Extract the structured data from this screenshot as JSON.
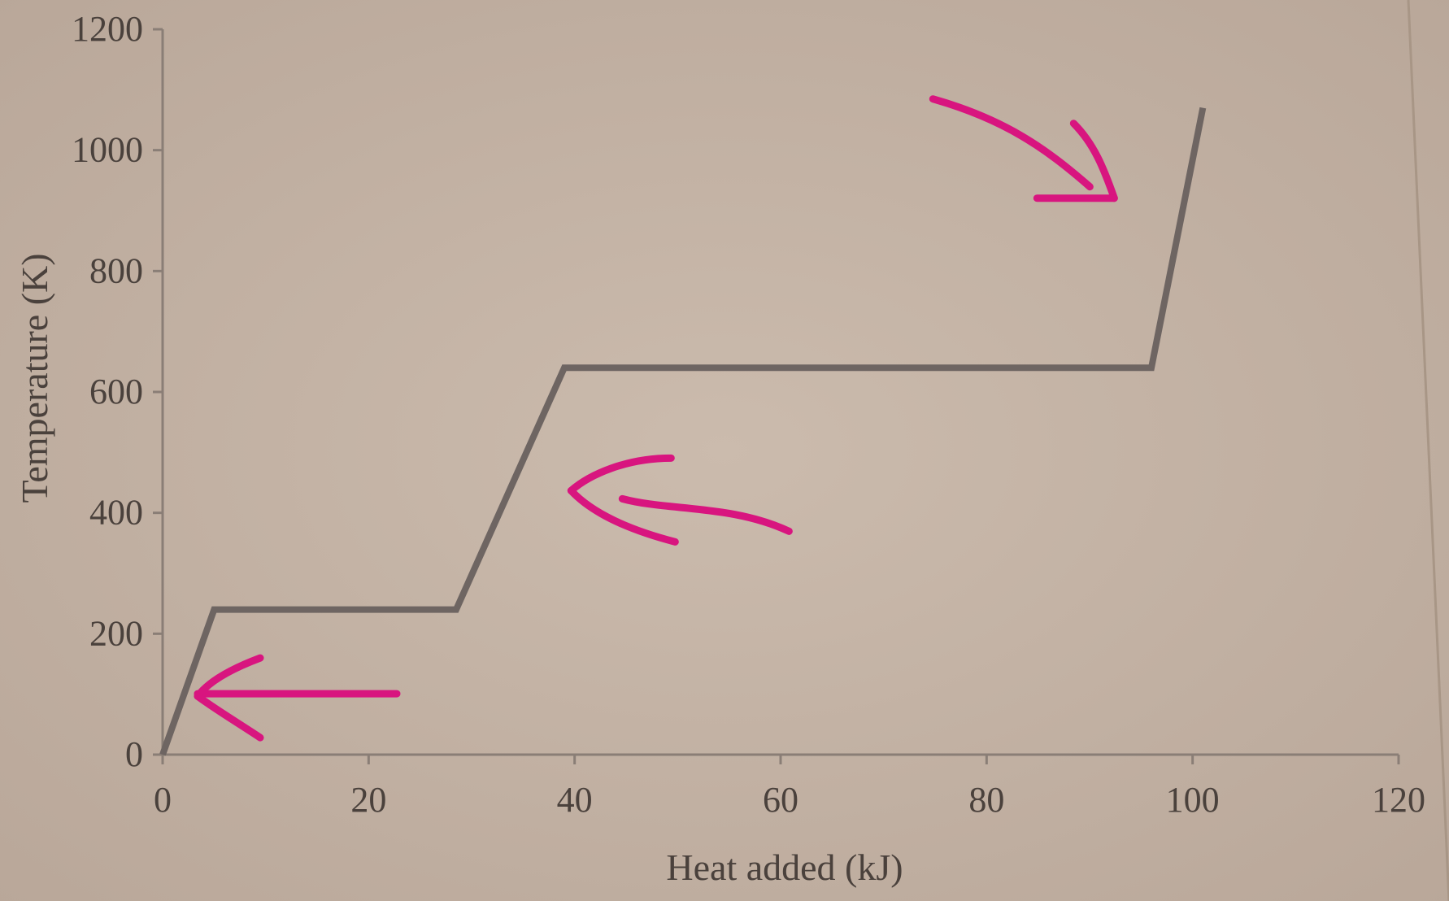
{
  "chart_data": {
    "type": "line",
    "title": "",
    "xlabel": "Heat added (kJ)",
    "ylabel": "Temperature (K)",
    "xlim": [
      0,
      120
    ],
    "ylim": [
      0,
      1200
    ],
    "x_ticks": [
      "0",
      "20",
      "40",
      "60",
      "80",
      "100",
      "120"
    ],
    "y_ticks": [
      "0",
      "200",
      "400",
      "600",
      "800",
      "1000",
      "1200"
    ],
    "grid": false,
    "legend": "none",
    "series": [
      {
        "x": [
          0,
          5,
          28.5,
          39,
          96,
          101
        ],
        "y": [
          0,
          240,
          240,
          640,
          640,
          1070
        ]
      }
    ],
    "annotations": [
      {
        "kind": "hand-drawn-arrow",
        "color": "#d8157f",
        "points_to": [
          3,
          90
        ]
      },
      {
        "kind": "hand-drawn-arrow",
        "color": "#d8157f",
        "points_to": [
          39.5,
          430
        ]
      },
      {
        "kind": "hand-drawn-arrow",
        "color": "#d8157f",
        "points_to": [
          92,
          930
        ]
      }
    ]
  },
  "colors": {
    "background": "#c4b3a4",
    "axis": "#8a7e76",
    "line": "#6e6562",
    "text": "#4a413c",
    "annotation": "#d8157f"
  }
}
